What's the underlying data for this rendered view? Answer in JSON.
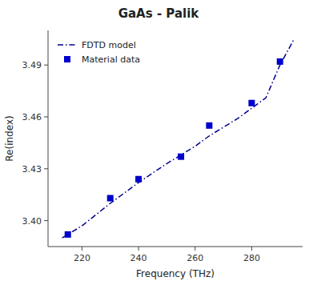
{
  "chart_data": {
    "type": "line",
    "title": "GaAs - Palik",
    "x_label": "Frequency (THz)",
    "y_label": "Re(index)",
    "xlim": [
      208,
      298
    ],
    "ylim": [
      3.385,
      3.51
    ],
    "xticks": [
      220,
      240,
      260,
      280
    ],
    "yticks": [
      {
        "value": 3.4,
        "label": "3.40"
      },
      3.43,
      3.46,
      3.49
    ],
    "grid": false,
    "legend": "upper left",
    "series": [
      {
        "name": "FDTD model",
        "type": "line",
        "line_style": "dash-dot",
        "color": "#00008B",
        "x": [
          213,
          220,
          230,
          240,
          250,
          255,
          260,
          265,
          270,
          275,
          280,
          285,
          290,
          295
        ],
        "values": [
          3.39,
          3.397,
          3.41,
          3.422,
          3.433,
          3.438,
          3.443,
          3.449,
          3.454,
          3.459,
          3.465,
          3.471,
          3.49,
          3.505
        ]
      },
      {
        "name": "Material data",
        "type": "scatter",
        "marker": "square",
        "color": "#0000CD",
        "x": [
          215,
          230,
          240,
          255,
          265,
          280,
          290
        ],
        "values": [
          3.392,
          3.413,
          3.424,
          3.437,
          3.455,
          3.468,
          3.492
        ]
      }
    ]
  }
}
